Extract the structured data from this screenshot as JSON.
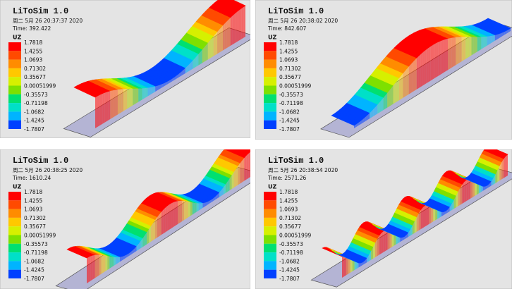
{
  "panels": [
    {
      "title": "LiToSim 1.0",
      "date": "周二 5月 26 20:37:37 2020",
      "time": "Time:   392.422",
      "legend": {
        "label": "UZ",
        "values": [
          "1.7818",
          "1.4255",
          "1.0693",
          "0.71302",
          "0.35677",
          "0.00051999",
          "-0.35573",
          "-0.71198",
          "-1.0682",
          "-1.4245",
          "-1.7807"
        ]
      }
    },
    {
      "title": "LiToSim 1.0",
      "date": "周二 5月 26 20:38:02 2020",
      "time": "Time:   842.607",
      "legend": {
        "label": "UZ",
        "values": [
          "1.7818",
          "1.4255",
          "1.0693",
          "0.71302",
          "0.35677",
          "0.00051999",
          "-0.35573",
          "-0.71198",
          "-1.0682",
          "-1.4245",
          "-1.7807"
        ]
      }
    },
    {
      "title": "LiToSim 1.0",
      "date": "周二 5月 26 20:38:25 2020",
      "time": "Time:   1610.24",
      "legend": {
        "label": "UZ",
        "values": [
          "1.7818",
          "1.4255",
          "1.0693",
          "0.71302",
          "0.35677",
          "0.00051999",
          "-0.35573",
          "-0.71198",
          "-1.0682",
          "-1.4245",
          "-1.7807"
        ]
      }
    },
    {
      "title": "LiToSim 1.0",
      "date": "周二 5月 26 20:38:54 2020",
      "time": "Time:   2571.26",
      "legend": {
        "label": "UZ",
        "values": [
          "1.7818",
          "1.4255",
          "1.0693",
          "0.71302",
          "0.35677",
          "0.00051999",
          "-0.35573",
          "-0.71198",
          "-1.0682",
          "-1.4245",
          "-1.7807"
        ]
      }
    }
  ]
}
